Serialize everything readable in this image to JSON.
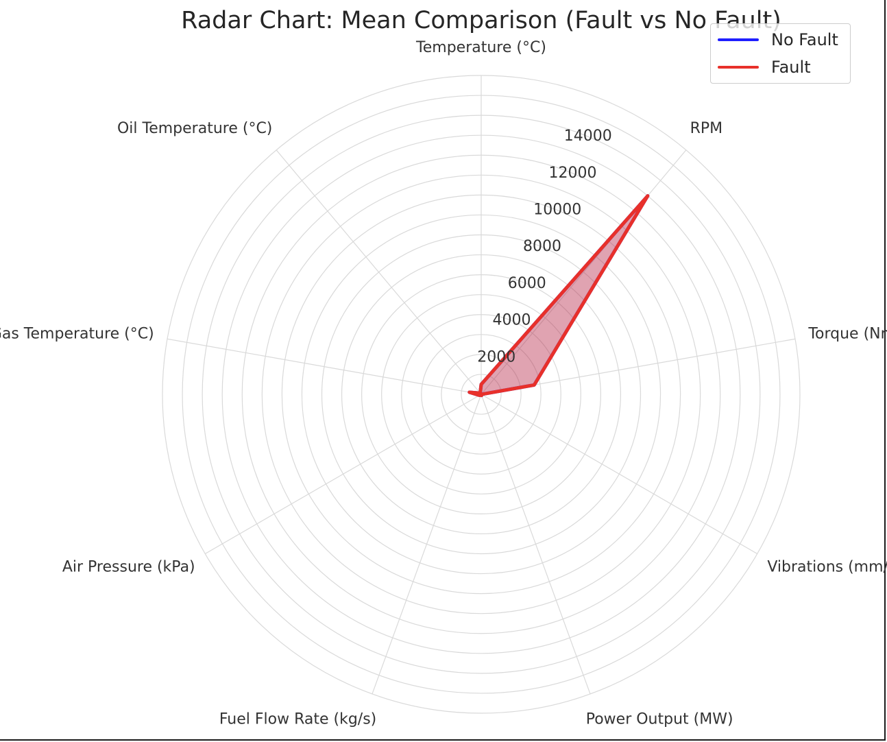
{
  "chart_data": {
    "type": "radar",
    "title": "Radar Chart: Mean Comparison (Fault vs No Fault)",
    "axes": [
      "Temperature (°C)",
      "RPM",
      "Torque (Nm)",
      "Vibrations (mm/s)",
      "Power Output (MW)",
      "Fuel Flow Rate (kg/s)",
      "Air Pressure (kPa)",
      "Exhaust Gas Temperature (°C)",
      "Oil Temperature (°C)"
    ],
    "r_ticks": [
      2000,
      4000,
      6000,
      8000,
      10000,
      12000,
      14000
    ],
    "rlim": [
      0,
      16000
    ],
    "grid": true,
    "legend_position": "top-right",
    "series": [
      {
        "name": "No Fault",
        "color": "#1f1fff",
        "fill": "#7b2d7b",
        "values": [
          500,
          13000,
          2700,
          5,
          60,
          40,
          100,
          600,
          80
        ]
      },
      {
        "name": "Fault",
        "color": "#e8302a",
        "fill": "#e8302a",
        "values": [
          500,
          13000,
          2700,
          5,
          60,
          40,
          100,
          600,
          80
        ]
      }
    ]
  }
}
